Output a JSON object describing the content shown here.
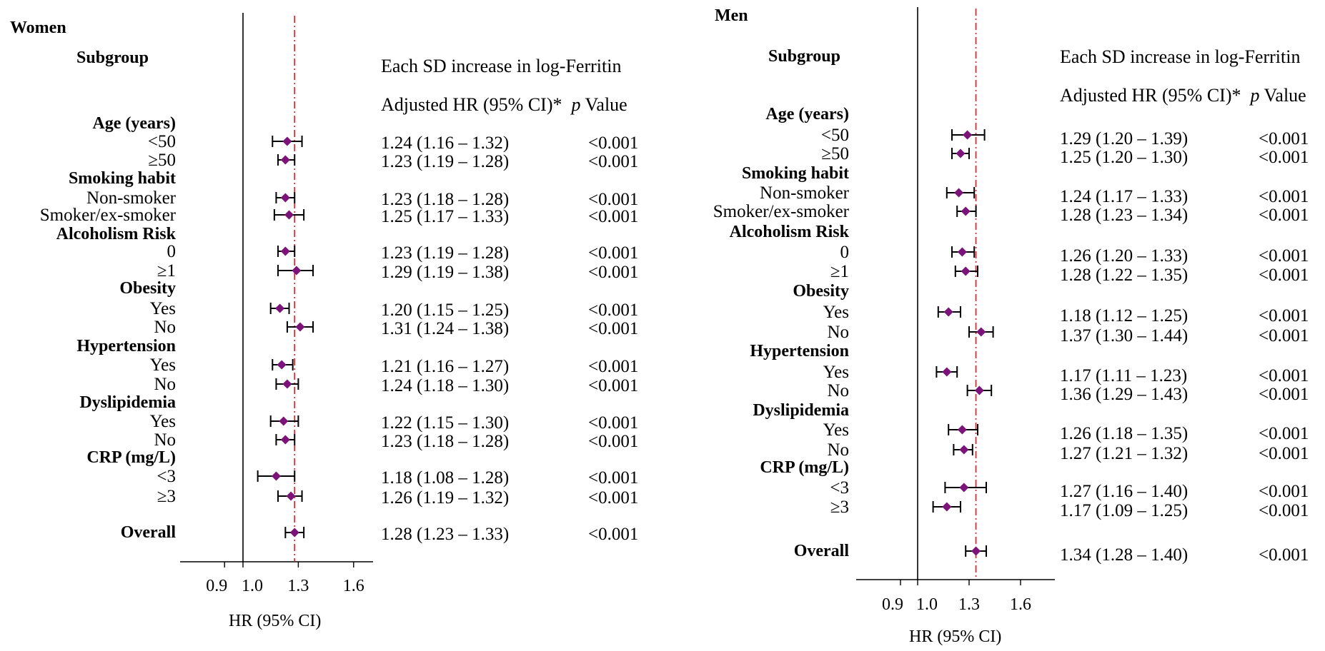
{
  "chart_data": [
    {
      "type": "forest",
      "panel_title": "Women",
      "subgroup_header": "Subgroup",
      "effect_header": "Each SD increase in log-Ferritin",
      "hr_header": "Adjusted HR (95% CI)*",
      "p_header_italic": "p",
      "p_header_rest": " Value",
      "xlabel": "HR (95% CI)",
      "xticks": [
        0.9,
        1.0,
        1.3,
        1.6
      ],
      "xtick_labels": [
        "0.9",
        "1.0",
        "1.3",
        "1.6"
      ],
      "xlim": [
        0.9,
        1.65
      ],
      "null_line": 1.0,
      "reference_line": 1.28,
      "rows": [
        {
          "label": "Age (years)",
          "kind": "group"
        },
        {
          "label": "<50",
          "kind": "item",
          "hr": 1.24,
          "lo": 1.16,
          "hi": 1.32,
          "ci_text": "1.24 (1.16 – 1.32)",
          "p": "<0.001"
        },
        {
          "label": "≥50",
          "kind": "item",
          "hr": 1.23,
          "lo": 1.19,
          "hi": 1.28,
          "ci_text": "1.23 (1.19 – 1.28)",
          "p": "<0.001"
        },
        {
          "label": "Smoking habit",
          "kind": "group"
        },
        {
          "label": "Non-smoker",
          "kind": "item",
          "hr": 1.23,
          "lo": 1.18,
          "hi": 1.28,
          "ci_text": "1.23 (1.18 – 1.28)",
          "p": "<0.001"
        },
        {
          "label": "Smoker/ex-smoker",
          "kind": "item",
          "hr": 1.25,
          "lo": 1.17,
          "hi": 1.33,
          "ci_text": "1.25 (1.17 – 1.33)",
          "p": "<0.001"
        },
        {
          "label": "Alcoholism Risk",
          "kind": "group"
        },
        {
          "label": "0",
          "kind": "item",
          "hr": 1.23,
          "lo": 1.19,
          "hi": 1.28,
          "ci_text": "1.23 (1.19 – 1.28)",
          "p": "<0.001"
        },
        {
          "label": "≥1",
          "kind": "item",
          "hr": 1.29,
          "lo": 1.19,
          "hi": 1.38,
          "ci_text": "1.29 (1.19 – 1.38)",
          "p": "<0.001"
        },
        {
          "label": "Obesity",
          "kind": "group"
        },
        {
          "label": "Yes",
          "kind": "item",
          "hr": 1.2,
          "lo": 1.15,
          "hi": 1.25,
          "ci_text": "1.20 (1.15 – 1.25)",
          "p": "<0.001"
        },
        {
          "label": "No",
          "kind": "item",
          "hr": 1.31,
          "lo": 1.24,
          "hi": 1.38,
          "ci_text": "1.31 (1.24 – 1.38)",
          "p": "<0.001"
        },
        {
          "label": "Hypertension",
          "kind": "group"
        },
        {
          "label": "Yes",
          "kind": "item",
          "hr": 1.21,
          "lo": 1.16,
          "hi": 1.27,
          "ci_text": "1.21 (1.16 – 1.27)",
          "p": "<0.001"
        },
        {
          "label": "No",
          "kind": "item",
          "hr": 1.24,
          "lo": 1.18,
          "hi": 1.3,
          "ci_text": "1.24 (1.18 – 1.30)",
          "p": "<0.001"
        },
        {
          "label": "Dyslipidemia",
          "kind": "group"
        },
        {
          "label": "Yes",
          "kind": "item",
          "hr": 1.22,
          "lo": 1.15,
          "hi": 1.3,
          "ci_text": "1.22 (1.15 – 1.30)",
          "p": "<0.001"
        },
        {
          "label": "No",
          "kind": "item",
          "hr": 1.23,
          "lo": 1.18,
          "hi": 1.28,
          "ci_text": "1.23 (1.18 – 1.28)",
          "p": "<0.001"
        },
        {
          "label": "CRP (mg/L)",
          "kind": "group"
        },
        {
          "label": "<3",
          "kind": "item",
          "hr": 1.18,
          "lo": 1.08,
          "hi": 1.28,
          "ci_text": "1.18 (1.08 – 1.28)",
          "p": "<0.001"
        },
        {
          "label": "≥3",
          "kind": "item",
          "hr": 1.26,
          "lo": 1.19,
          "hi": 1.32,
          "ci_text": "1.26 (1.19 – 1.32)",
          "p": "<0.001"
        },
        {
          "label": "Overall",
          "kind": "overall",
          "hr": 1.28,
          "lo": 1.23,
          "hi": 1.33,
          "ci_text": "1.28 (1.23 – 1.33)",
          "p": "<0.001"
        }
      ]
    },
    {
      "type": "forest",
      "panel_title": "Men",
      "subgroup_header": "Subgroup",
      "effect_header": "Each SD increase in log-Ferritin",
      "hr_header": "Adjusted HR (95% CI)*",
      "p_header_italic": "p",
      "p_header_rest": " Value",
      "xlabel": "HR (95% CI)",
      "xticks": [
        0.9,
        1.0,
        1.3,
        1.6
      ],
      "xtick_labels": [
        "0.9",
        "1.0",
        "1.3",
        "1.6"
      ],
      "xlim": [
        0.9,
        1.65
      ],
      "null_line": 1.0,
      "reference_line": 1.34,
      "rows": [
        {
          "label": "Age (years)",
          "kind": "group"
        },
        {
          "label": "<50",
          "kind": "item",
          "hr": 1.29,
          "lo": 1.2,
          "hi": 1.39,
          "ci_text": "1.29 (1.20 – 1.39)",
          "p": "<0.001"
        },
        {
          "label": "≥50",
          "kind": "item",
          "hr": 1.25,
          "lo": 1.2,
          "hi": 1.3,
          "ci_text": "1.25 (1.20 – 1.30)",
          "p": "<0.001"
        },
        {
          "label": "Smoking habit",
          "kind": "group"
        },
        {
          "label": "Non-smoker",
          "kind": "item",
          "hr": 1.24,
          "lo": 1.17,
          "hi": 1.33,
          "ci_text": "1.24 (1.17 – 1.33)",
          "p": "<0.001"
        },
        {
          "label": "Smoker/ex-smoker",
          "kind": "item",
          "hr": 1.28,
          "lo": 1.23,
          "hi": 1.34,
          "ci_text": "1.28 (1.23 – 1.34)",
          "p": "<0.001"
        },
        {
          "label": "Alcoholism Risk",
          "kind": "group"
        },
        {
          "label": "0",
          "kind": "item",
          "hr": 1.26,
          "lo": 1.2,
          "hi": 1.33,
          "ci_text": "1.26 (1.20 – 1.33)",
          "p": "<0.001"
        },
        {
          "label": "≥1",
          "kind": "item",
          "hr": 1.28,
          "lo": 1.22,
          "hi": 1.35,
          "ci_text": "1.28 (1.22 – 1.35)",
          "p": "<0.001"
        },
        {
          "label": "Obesity",
          "kind": "group"
        },
        {
          "label": "Yes",
          "kind": "item",
          "hr": 1.18,
          "lo": 1.12,
          "hi": 1.25,
          "ci_text": "1.18 (1.12 – 1.25)",
          "p": "<0.001"
        },
        {
          "label": "No",
          "kind": "item",
          "hr": 1.37,
          "lo": 1.3,
          "hi": 1.44,
          "ci_text": "1.37 (1.30 – 1.44)",
          "p": "<0.001"
        },
        {
          "label": "Hypertension",
          "kind": "group"
        },
        {
          "label": "Yes",
          "kind": "item",
          "hr": 1.17,
          "lo": 1.11,
          "hi": 1.23,
          "ci_text": "1.17 (1.11 – 1.23)",
          "p": "<0.001"
        },
        {
          "label": "No",
          "kind": "item",
          "hr": 1.36,
          "lo": 1.29,
          "hi": 1.43,
          "ci_text": "1.36 (1.29 – 1.43)",
          "p": "<0.001"
        },
        {
          "label": "Dyslipidemia",
          "kind": "group"
        },
        {
          "label": "Yes",
          "kind": "item",
          "hr": 1.26,
          "lo": 1.18,
          "hi": 1.35,
          "ci_text": "1.26 (1.18 – 1.35)",
          "p": "<0.001"
        },
        {
          "label": "No",
          "kind": "item",
          "hr": 1.27,
          "lo": 1.21,
          "hi": 1.32,
          "ci_text": "1.27 (1.21 – 1.32)",
          "p": "<0.001"
        },
        {
          "label": "CRP (mg/L)",
          "kind": "group"
        },
        {
          "label": "<3",
          "kind": "item",
          "hr": 1.27,
          "lo": 1.16,
          "hi": 1.4,
          "ci_text": "1.27 (1.16 – 1.40)",
          "p": "<0.001"
        },
        {
          "label": "≥3",
          "kind": "item",
          "hr": 1.17,
          "lo": 1.09,
          "hi": 1.25,
          "ci_text": "1.17 (1.09 – 1.25)",
          "p": "<0.001"
        },
        {
          "label": "Overall",
          "kind": "overall",
          "hr": 1.34,
          "lo": 1.28,
          "hi": 1.4,
          "ci_text": "1.34 (1.28 – 1.40)",
          "p": "<0.001"
        }
      ]
    }
  ],
  "colors": {
    "point": "#7b137b",
    "whisker": "#000000",
    "reference_line": "#e8141c",
    "axis": "#000000"
  }
}
